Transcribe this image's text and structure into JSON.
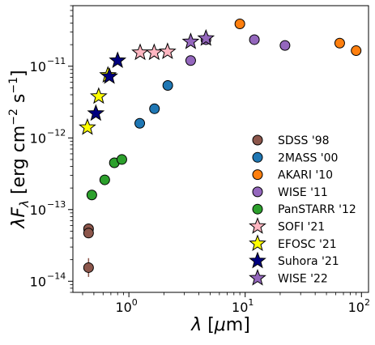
{
  "chart_data": {
    "type": "scatter",
    "title": "",
    "xlabel": "λ [μm]",
    "ylabel": "λF_λ [erg cm^-2 s^-1]",
    "xscale": "log",
    "yscale": "log",
    "xlim": [
      0.33,
      115
    ],
    "ylim": [
      7e-15,
      7e-11
    ],
    "grid": false,
    "legend_position": "lower-right",
    "x_ticks": [
      {
        "value": 1,
        "label": "10",
        "exp": "0"
      },
      {
        "value": 10,
        "label": "10",
        "exp": "1"
      },
      {
        "value": 100,
        "label": "10",
        "exp": "2"
      }
    ],
    "y_ticks": [
      {
        "value": 1e-14,
        "label": "10",
        "exp": "−14"
      },
      {
        "value": 1e-13,
        "label": "10",
        "exp": "−13"
      },
      {
        "value": 1e-12,
        "label": "10",
        "exp": "−12"
      },
      {
        "value": 1e-11,
        "label": "10",
        "exp": "−11"
      }
    ],
    "series": [
      {
        "name": "SDSS '98",
        "marker": "circle",
        "color": "#8c564b",
        "points": [
          {
            "x": 0.45,
            "y": 5.4e-14
          },
          {
            "x": 0.45,
            "y": 4.7e-14
          },
          {
            "x": 0.45,
            "y": 1.55e-14,
            "yerr_low": 1.15e-14,
            "yerr_high": 2.1e-14
          }
        ]
      },
      {
        "name": "2MASS '00",
        "marker": "circle",
        "color": "#1f77b4",
        "points": [
          {
            "x": 1.24,
            "y": 1.6e-12
          },
          {
            "x": 1.66,
            "y": 2.55e-12
          },
          {
            "x": 2.16,
            "y": 5.4e-12
          }
        ]
      },
      {
        "name": "AKARI '10",
        "marker": "circle",
        "color": "#ff7f0e",
        "points": [
          {
            "x": 9.0,
            "y": 3.9e-11
          },
          {
            "x": 65.0,
            "y": 2.1e-11
          },
          {
            "x": 90.0,
            "y": 1.65e-11
          }
        ]
      },
      {
        "name": "WISE '11",
        "marker": "circle",
        "color": "#9467bd",
        "points": [
          {
            "x": 3.4,
            "y": 1.2e-11
          },
          {
            "x": 4.6,
            "y": 2.35e-11
          },
          {
            "x": 12.0,
            "y": 2.35e-11
          },
          {
            "x": 22.0,
            "y": 1.95e-11
          }
        ]
      },
      {
        "name": "PanSTARR '12",
        "marker": "circle",
        "color": "#2ca02c",
        "points": [
          {
            "x": 0.48,
            "y": 1.6e-13
          },
          {
            "x": 0.62,
            "y": 2.6e-13
          },
          {
            "x": 0.75,
            "y": 4.5e-13
          },
          {
            "x": 0.87,
            "y": 5e-13
          }
        ]
      },
      {
        "name": "SOFI '21",
        "marker": "star",
        "color": "#ffb6c1",
        "points": [
          {
            "x": 1.25,
            "y": 1.55e-11
          },
          {
            "x": 1.65,
            "y": 1.55e-11
          },
          {
            "x": 2.15,
            "y": 1.6e-11
          }
        ]
      },
      {
        "name": "EFOSC '21",
        "marker": "star",
        "color": "#ffff00",
        "points": [
          {
            "x": 0.44,
            "y": 1.4e-12
          },
          {
            "x": 0.55,
            "y": 3.8e-12
          },
          {
            "x": 0.66,
            "y": 7.5e-12
          }
        ]
      },
      {
        "name": "Suhora '21",
        "marker": "star",
        "color": "#00007f",
        "points": [
          {
            "x": 0.52,
            "y": 2.2e-12
          },
          {
            "x": 0.68,
            "y": 7.2e-12
          },
          {
            "x": 0.8,
            "y": 1.2e-11
          }
        ]
      },
      {
        "name": "WISE '22",
        "marker": "star",
        "color": "#9467bd",
        "points": [
          {
            "x": 3.4,
            "y": 2.2e-11
          },
          {
            "x": 4.6,
            "y": 2.45e-11
          }
        ]
      }
    ]
  }
}
